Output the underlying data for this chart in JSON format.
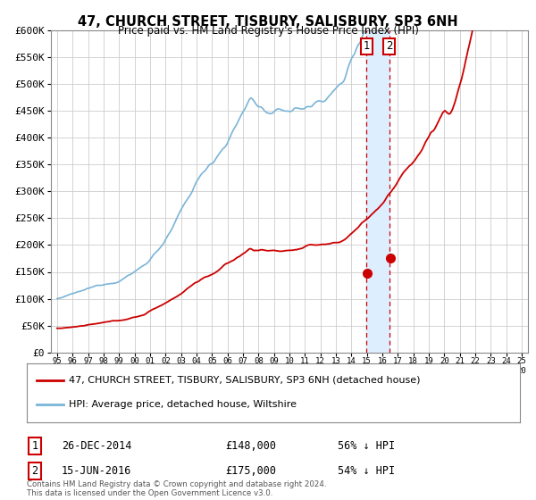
{
  "title": "47, CHURCH STREET, TISBURY, SALISBURY, SP3 6NH",
  "subtitle": "Price paid vs. HM Land Registry's House Price Index (HPI)",
  "legend_line1": "47, CHURCH STREET, TISBURY, SALISBURY, SP3 6NH (detached house)",
  "legend_line2": "HPI: Average price, detached house, Wiltshire",
  "sale1_date": "26-DEC-2014",
  "sale1_price": "£148,000",
  "sale1_hpi": "56% ↓ HPI",
  "sale1_year": 2014.97,
  "sale1_value": 148000,
  "sale2_date": "15-JUN-2016",
  "sale2_price": "£175,000",
  "sale2_hpi": "54% ↓ HPI",
  "sale2_year": 2016.45,
  "sale2_value": 175000,
  "hpi_color": "#7ab4d8",
  "price_color": "#cc0000",
  "highlight_color": "#ddeeff",
  "vline_color": "#cc0000",
  "grid_color": "#cccccc",
  "bg_color": "#ffffff",
  "ylim": [
    0,
    600000
  ],
  "yticks": [
    0,
    50000,
    100000,
    150000,
    200000,
    250000,
    300000,
    350000,
    400000,
    450000,
    500000,
    550000,
    600000
  ],
  "ytick_labels": [
    "£0",
    "£50K",
    "£100K",
    "£150K",
    "£200K",
    "£250K",
    "£300K",
    "£350K",
    "£400K",
    "£450K",
    "£500K",
    "£550K",
    "£600K"
  ],
  "footnote": "Contains HM Land Registry data © Crown copyright and database right 2024.\nThis data is licensed under the Open Government Licence v3.0.",
  "xlim_start": 1994.6,
  "xlim_end": 2025.4
}
